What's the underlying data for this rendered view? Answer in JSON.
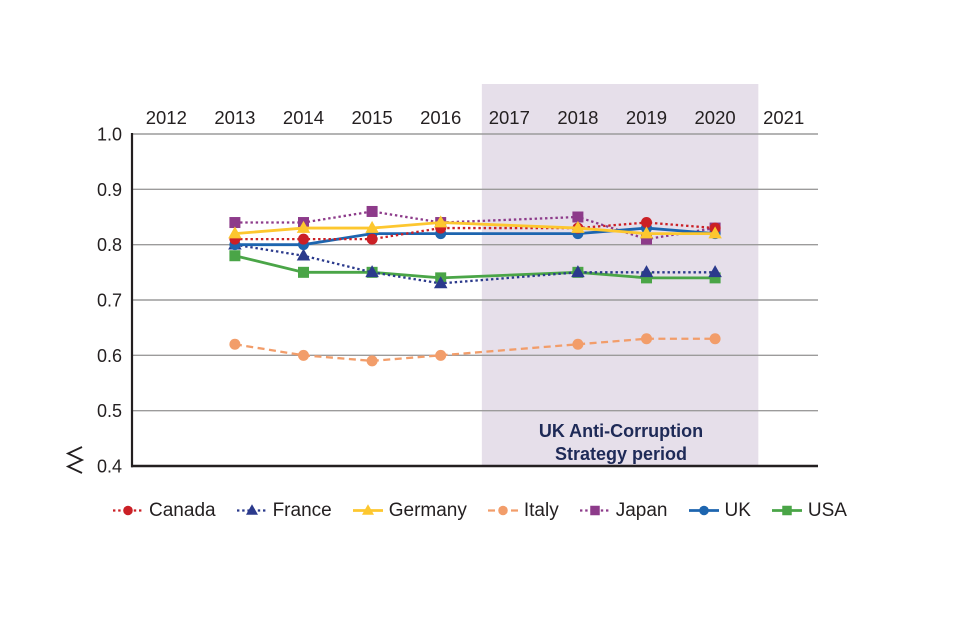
{
  "chart_data": {
    "type": "line",
    "title": "",
    "xlabel": "",
    "ylabel": "",
    "x_years": [
      2013,
      2014,
      2015,
      2016,
      2018,
      2019,
      2020
    ],
    "x_axis": {
      "position": "top",
      "ticks": [
        "2012",
        "2013",
        "2014",
        "2015",
        "2016",
        "2017",
        "2018",
        "2019",
        "2020",
        "2021"
      ],
      "range": [
        2012,
        2021
      ]
    },
    "y_axis": {
      "ticks": [
        "1.0",
        "0.9",
        "0.8",
        "0.7",
        "0.6",
        "0.5",
        "0.4"
      ],
      "min": 0.4,
      "max": 1.0,
      "has_break_symbol": true
    },
    "grid": true,
    "legend_position": "bottom",
    "series": [
      {
        "name": "Canada",
        "color": "#cb2026",
        "marker": "circle",
        "line_style": "dotted",
        "values": [
          0.81,
          0.81,
          0.81,
          0.83,
          0.83,
          0.84,
          0.83
        ]
      },
      {
        "name": "France",
        "color": "#2b3a8c",
        "marker": "triangle",
        "line_style": "dotted",
        "values": [
          0.8,
          0.78,
          0.75,
          0.73,
          0.75,
          0.75,
          0.75
        ]
      },
      {
        "name": "Germany",
        "color": "#fdc72f",
        "marker": "triangle",
        "line_style": "solid",
        "values": [
          0.82,
          0.83,
          0.83,
          0.84,
          0.83,
          0.82,
          0.82
        ]
      },
      {
        "name": "Italy",
        "color": "#f29d6a",
        "marker": "circle",
        "line_style": "dashed",
        "values": [
          0.62,
          0.6,
          0.59,
          0.6,
          0.62,
          0.63,
          0.63
        ]
      },
      {
        "name": "Japan",
        "color": "#8d3b8a",
        "marker": "square",
        "line_style": "dotted",
        "values": [
          0.84,
          0.84,
          0.86,
          0.84,
          0.85,
          0.81,
          0.83
        ]
      },
      {
        "name": "UK",
        "color": "#1d65af",
        "marker": "circle",
        "line_style": "solid",
        "values": [
          0.8,
          0.8,
          0.82,
          0.82,
          0.82,
          0.83,
          0.82
        ]
      },
      {
        "name": "USA",
        "color": "#4aa547",
        "marker": "square",
        "line_style": "solid",
        "values": [
          0.78,
          0.75,
          0.75,
          0.74,
          0.75,
          0.74,
          0.74
        ]
      }
    ],
    "draw_order": [
      "Italy",
      "Japan",
      "USA",
      "France",
      "UK",
      "Canada",
      "Germany"
    ],
    "band": {
      "label": [
        "UK Anti-Corruption",
        "Strategy period"
      ],
      "start_year": 2017,
      "end_year": 2020,
      "color": "#e6dfea"
    },
    "colors": {
      "grid": "#9c9b9b",
      "axis": "#231f20",
      "tick_text": "#231f20",
      "annotation_text": "#1e2a57"
    }
  }
}
